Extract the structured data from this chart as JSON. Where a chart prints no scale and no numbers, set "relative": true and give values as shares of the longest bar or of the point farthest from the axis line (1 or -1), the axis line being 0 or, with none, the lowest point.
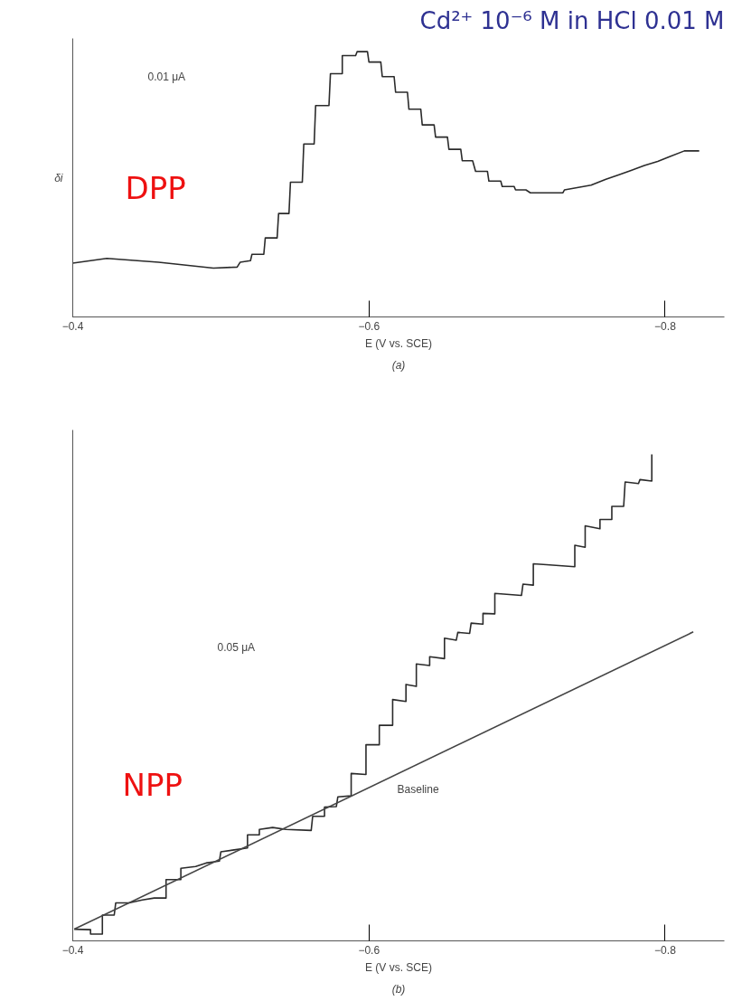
{
  "chart_data": [
    {
      "type": "line",
      "title": "Cd²⁺ 10⁻⁶ M in HCl 0.01 M",
      "xlabel": "E (V vs. SCE)",
      "ylabel": "δi",
      "relative": true,
      "grid": false,
      "tick_labels": "x",
      "marker": "none",
      "line_style": "solid",
      "xlim": [
        -0.4,
        -0.84
      ],
      "xticks": [
        {
          "value": -0.4,
          "label": "−0.4"
        },
        {
          "value": -0.6,
          "label": "−0.6"
        },
        {
          "value": -0.8,
          "label": "−0.8"
        }
      ],
      "annotations": [
        "0.01 μA",
        "DPP",
        "(a)"
      ],
      "series": [
        {
          "color": "#2b2b2b",
          "x": [
            -0.4,
            -0.423,
            -0.458,
            -0.495,
            -0.511,
            -0.513,
            -0.52,
            -0.521,
            -0.529,
            -0.53,
            -0.538,
            -0.539,
            -0.546,
            -0.547,
            -0.555,
            -0.556,
            -0.563,
            -0.564,
            -0.573,
            -0.574,
            -0.582,
            -0.582,
            -0.591,
            -0.592,
            -0.599,
            -0.6,
            -0.608,
            -0.609,
            -0.617,
            -0.618,
            -0.626,
            -0.627,
            -0.635,
            -0.636,
            -0.644,
            -0.645,
            -0.653,
            -0.654,
            -0.662,
            -0.663,
            -0.67,
            -0.672,
            -0.68,
            -0.681,
            -0.689,
            -0.69,
            -0.698,
            -0.699,
            -0.706,
            -0.709,
            -0.731,
            -0.732,
            -0.75,
            -0.76,
            -0.768,
            -0.777,
            -0.786,
            -0.795,
            -0.803,
            -0.813,
            -0.823
          ],
          "values": [
            0.203,
            0.221,
            0.206,
            0.184,
            0.188,
            0.206,
            0.212,
            0.236,
            0.236,
            0.298,
            0.298,
            0.39,
            0.39,
            0.508,
            0.508,
            0.652,
            0.652,
            0.797,
            0.797,
            0.917,
            0.917,
            0.985,
            0.985,
            1.0,
            1.0,
            0.961,
            0.961,
            0.906,
            0.906,
            0.847,
            0.847,
            0.783,
            0.783,
            0.724,
            0.724,
            0.678,
            0.678,
            0.632,
            0.632,
            0.589,
            0.589,
            0.549,
            0.549,
            0.512,
            0.512,
            0.492,
            0.492,
            0.479,
            0.479,
            0.468,
            0.468,
            0.479,
            0.497,
            0.519,
            0.534,
            0.552,
            0.571,
            0.586,
            0.604,
            0.626,
            0.626
          ]
        }
      ]
    },
    {
      "type": "line",
      "xlabel": "E (V vs. SCE)",
      "relative": true,
      "grid": false,
      "tick_labels": "x",
      "marker": "none",
      "line_style": "solid",
      "xlim": [
        -0.4,
        -0.84
      ],
      "xticks": [
        {
          "value": -0.4,
          "label": "−0.4"
        },
        {
          "value": -0.6,
          "label": "−0.6"
        },
        {
          "value": -0.8,
          "label": "−0.8"
        }
      ],
      "annotations": [
        "0.05 μA",
        "NPP",
        "(b)",
        {
          "text": "Baseline",
          "x": -0.613,
          "y": 0.33
        }
      ],
      "series": [
        {
          "color": "#2b2b2b",
          "x": [
            -0.401,
            -0.412,
            -0.412,
            -0.42,
            -0.42,
            -0.428,
            -0.429,
            -0.438,
            -0.447,
            -0.455,
            -0.463,
            -0.463,
            -0.473,
            -0.473,
            -0.483,
            -0.49,
            -0.499,
            -0.5,
            -0.509,
            -0.518,
            -0.518,
            -0.526,
            -0.526,
            -0.535,
            -0.544,
            -0.561,
            -0.562,
            -0.57,
            -0.57,
            -0.578,
            -0.579,
            -0.588,
            -0.588,
            -0.598,
            -0.598,
            -0.607,
            -0.607,
            -0.616,
            -0.616,
            -0.625,
            -0.625,
            -0.632,
            -0.632,
            -0.641,
            -0.641,
            -0.651,
            -0.651,
            -0.659,
            -0.66,
            -0.668,
            -0.669,
            -0.677,
            -0.677,
            -0.685,
            -0.685,
            -0.703,
            -0.704,
            -0.711,
            -0.711,
            -0.72,
            -0.739,
            -0.739,
            -0.746,
            -0.746,
            -0.756,
            -0.756,
            -0.764,
            -0.764,
            -0.772,
            -0.773,
            -0.782,
            -0.783,
            -0.791,
            -0.791
          ],
          "values": [
            0.024,
            0.023,
            0.014,
            0.014,
            0.053,
            0.053,
            0.078,
            0.078,
            0.084,
            0.088,
            0.088,
            0.126,
            0.126,
            0.149,
            0.153,
            0.16,
            0.164,
            0.183,
            0.187,
            0.191,
            0.218,
            0.218,
            0.229,
            0.233,
            0.229,
            0.227,
            0.256,
            0.256,
            0.275,
            0.276,
            0.296,
            0.298,
            0.344,
            0.342,
            0.403,
            0.403,
            0.443,
            0.443,
            0.496,
            0.492,
            0.527,
            0.523,
            0.569,
            0.566,
            0.584,
            0.58,
            0.622,
            0.618,
            0.634,
            0.632,
            0.653,
            0.651,
            0.673,
            0.672,
            0.714,
            0.71,
            0.733,
            0.731,
            0.775,
            0.773,
            0.769,
            0.813,
            0.809,
            0.853,
            0.847,
            0.866,
            0.866,
            0.893,
            0.893,
            0.943,
            0.94,
            0.948,
            0.945,
            1.0
          ]
        },
        {
          "color": "#444444",
          "x": [
            -0.401,
            -0.819
          ],
          "values": [
            0.024,
            0.635
          ]
        }
      ]
    }
  ]
}
